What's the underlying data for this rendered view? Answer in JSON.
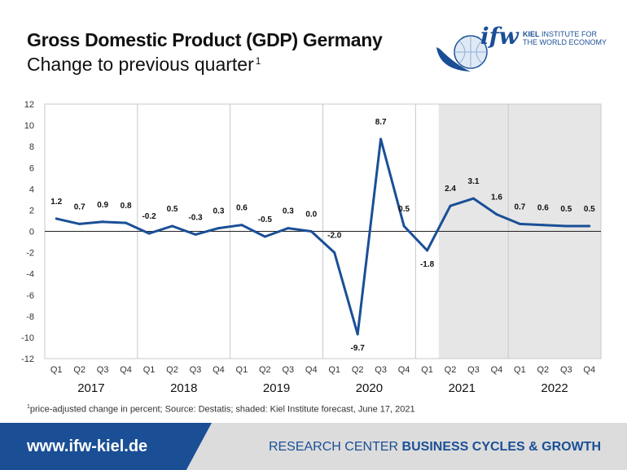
{
  "header": {
    "title": "Gross Domestic Product (GDP) Germany",
    "subtitle": "Change to previous quarter",
    "subtitle_note": "1"
  },
  "logo": {
    "mark": "ifw",
    "line1_bold": "KIEL",
    "line1": "INSTITUTE FOR",
    "line2": "THE WORLD ECONOMY"
  },
  "footnote": {
    "marker": "1",
    "text": "price-adjusted change in percent; Source: Destatis; shaded: Kiel Institute forecast, June 17, 2021"
  },
  "footer": {
    "url": "www.ifw-kiel.de",
    "research_center": "RESEARCH CENTER",
    "unit": "BUSINESS CYCLES & GROWTH"
  },
  "colors": {
    "line": "#1a4f96",
    "shade": "#e6e6e6",
    "brand": "#1a4f96"
  },
  "chart_data": {
    "type": "line",
    "categories": [
      "Q1",
      "Q2",
      "Q3",
      "Q4",
      "Q1",
      "Q2",
      "Q3",
      "Q4",
      "Q1",
      "Q2",
      "Q3",
      "Q4",
      "Q1",
      "Q2",
      "Q3",
      "Q4",
      "Q1",
      "Q2",
      "Q3",
      "Q4",
      "Q1",
      "Q2",
      "Q3",
      "Q4"
    ],
    "years": [
      "2017",
      "2018",
      "2019",
      "2020",
      "2021",
      "2022"
    ],
    "values": [
      1.2,
      0.7,
      0.9,
      0.8,
      -0.2,
      0.5,
      -0.3,
      0.3,
      0.6,
      -0.5,
      0.3,
      0.0,
      -2.0,
      -9.7,
      8.7,
      0.5,
      -1.8,
      2.4,
      3.1,
      1.6,
      0.7,
      0.6,
      0.5,
      0.5
    ],
    "labels": [
      "1.2",
      "0.7",
      "0.9",
      "0.8",
      "-0.2",
      "0.5",
      "-0.3",
      "0.3",
      "0.6",
      "-0.5",
      "0.3",
      "0.0",
      "-2.0",
      "-9.7",
      "8.7",
      "0.5",
      "-1.8",
      "2.4",
      "3.1",
      "1.6",
      "0.7",
      "0.6",
      "0.5",
      "0.5"
    ],
    "ylim": [
      -12,
      12
    ],
    "yticks": [
      "12",
      "10",
      "8",
      "6",
      "4",
      "2",
      "0",
      "-2",
      "-4",
      "-6",
      "-8",
      "-10",
      "-12"
    ],
    "forecast_from_index": 17,
    "grid": "vertical year separators",
    "xlabel": "",
    "ylabel": ""
  }
}
